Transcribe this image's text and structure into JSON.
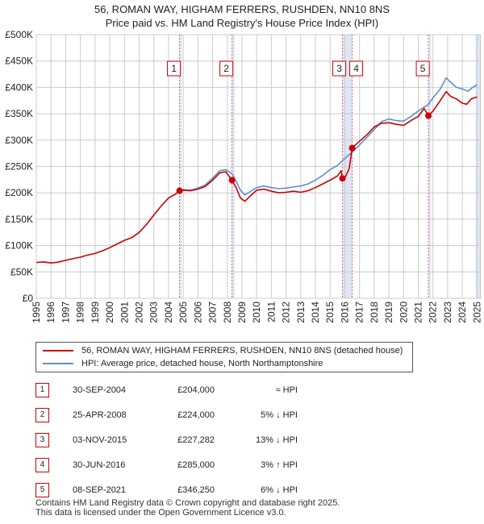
{
  "title_line1": "56, ROMAN WAY, HIGHAM FERRERS, RUSHDEN, NN10 8NS",
  "title_line2": "Price paid vs. HM Land Registry's House Price Index (HPI)",
  "colors": {
    "property": "#cc0000",
    "hpi": "#5b8fd0",
    "marker_line": "#e06060",
    "shade": "#dde6f5",
    "grid": "#cccccc"
  },
  "chart_data": {
    "type": "line",
    "xlim": [
      1995,
      2025.2
    ],
    "ylim": [
      0,
      500000
    ],
    "x_ticks": [
      "1995",
      "1996",
      "1997",
      "1998",
      "1999",
      "2000",
      "2001",
      "2002",
      "2003",
      "2004",
      "2005",
      "2006",
      "2007",
      "2008",
      "2009",
      "2010",
      "2011",
      "2012",
      "2013",
      "2014",
      "2015",
      "2016",
      "2017",
      "2018",
      "2019",
      "2020",
      "2021",
      "2022",
      "2023",
      "2024",
      "2025"
    ],
    "y_ticks": [
      0,
      50000,
      100000,
      150000,
      200000,
      250000,
      300000,
      350000,
      400000,
      450000,
      500000
    ],
    "y_tick_labels": [
      "£0",
      "£50K",
      "£100K",
      "£150K",
      "£200K",
      "£250K",
      "£300K",
      "£350K",
      "£400K",
      "£450K",
      "£500K"
    ],
    "series": [
      {
        "name": "56, ROMAN WAY, HIGHAM FERRERS, RUSHDEN, NN10 8NS (detached house)",
        "color": "#cc0000",
        "points": [
          [
            1995.0,
            68000
          ],
          [
            1995.5,
            69000
          ],
          [
            1996.0,
            67000
          ],
          [
            1996.5,
            68500
          ],
          [
            1997.0,
            72000
          ],
          [
            1997.5,
            75000
          ],
          [
            1998.0,
            78000
          ],
          [
            1998.5,
            82000
          ],
          [
            1999.0,
            85000
          ],
          [
            1999.5,
            90000
          ],
          [
            2000.0,
            96000
          ],
          [
            2000.5,
            103000
          ],
          [
            2001.0,
            110000
          ],
          [
            2001.5,
            115000
          ],
          [
            2002.0,
            125000
          ],
          [
            2002.5,
            140000
          ],
          [
            2003.0,
            158000
          ],
          [
            2003.5,
            175000
          ],
          [
            2004.0,
            190000
          ],
          [
            2004.5,
            198000
          ],
          [
            2004.75,
            204000
          ],
          [
            2005.0,
            205000
          ],
          [
            2005.5,
            204000
          ],
          [
            2006.0,
            207000
          ],
          [
            2006.5,
            212000
          ],
          [
            2007.0,
            224000
          ],
          [
            2007.5,
            238000
          ],
          [
            2007.9,
            240000
          ],
          [
            2008.32,
            224000
          ],
          [
            2008.6,
            210000
          ],
          [
            2008.9,
            190000
          ],
          [
            2009.2,
            184000
          ],
          [
            2009.6,
            195000
          ],
          [
            2010.0,
            205000
          ],
          [
            2010.5,
            207000
          ],
          [
            2011.0,
            203000
          ],
          [
            2011.5,
            200000
          ],
          [
            2012.0,
            201000
          ],
          [
            2012.5,
            203000
          ],
          [
            2013.0,
            201000
          ],
          [
            2013.5,
            204000
          ],
          [
            2014.0,
            210000
          ],
          [
            2014.5,
            217000
          ],
          [
            2015.0,
            224000
          ],
          [
            2015.5,
            232000
          ],
          [
            2015.75,
            242000
          ],
          [
            2015.84,
            227282
          ],
          [
            2016.0,
            228000
          ],
          [
            2016.3,
            246000
          ],
          [
            2016.5,
            285000
          ],
          [
            2017.0,
            298000
          ],
          [
            2017.5,
            310000
          ],
          [
            2018.0,
            325000
          ],
          [
            2018.5,
            332000
          ],
          [
            2019.0,
            333000
          ],
          [
            2019.5,
            330000
          ],
          [
            2020.0,
            328000
          ],
          [
            2020.5,
            337000
          ],
          [
            2021.0,
            345000
          ],
          [
            2021.4,
            360000
          ],
          [
            2021.69,
            346250
          ],
          [
            2022.0,
            355000
          ],
          [
            2022.5,
            375000
          ],
          [
            2022.9,
            392000
          ],
          [
            2023.2,
            383000
          ],
          [
            2023.6,
            378000
          ],
          [
            2024.0,
            370000
          ],
          [
            2024.3,
            368000
          ],
          [
            2024.6,
            378000
          ],
          [
            2025.0,
            382000
          ]
        ]
      },
      {
        "name": "HPI: Average price, detached house, North Northamptonshire",
        "color": "#5b8fd0",
        "points": [
          [
            2004.75,
            205000
          ],
          [
            2005.0,
            206000
          ],
          [
            2005.5,
            205000
          ],
          [
            2006.0,
            209000
          ],
          [
            2006.5,
            215000
          ],
          [
            2007.0,
            228000
          ],
          [
            2007.5,
            242000
          ],
          [
            2007.9,
            244000
          ],
          [
            2008.32,
            236000
          ],
          [
            2008.6,
            222000
          ],
          [
            2008.9,
            205000
          ],
          [
            2009.2,
            196000
          ],
          [
            2009.6,
            203000
          ],
          [
            2010.0,
            210000
          ],
          [
            2010.5,
            213000
          ],
          [
            2011.0,
            210000
          ],
          [
            2011.5,
            208000
          ],
          [
            2012.0,
            209000
          ],
          [
            2012.5,
            211000
          ],
          [
            2013.0,
            213000
          ],
          [
            2013.5,
            217000
          ],
          [
            2014.0,
            224000
          ],
          [
            2014.5,
            233000
          ],
          [
            2015.0,
            244000
          ],
          [
            2015.5,
            252000
          ],
          [
            2015.84,
            261000
          ],
          [
            2016.2,
            270000
          ],
          [
            2016.5,
            277000
          ],
          [
            2017.0,
            291000
          ],
          [
            2017.5,
            305000
          ],
          [
            2018.0,
            320000
          ],
          [
            2018.5,
            335000
          ],
          [
            2019.0,
            340000
          ],
          [
            2019.5,
            337000
          ],
          [
            2020.0,
            336000
          ],
          [
            2020.5,
            345000
          ],
          [
            2021.0,
            355000
          ],
          [
            2021.69,
            368000
          ],
          [
            2022.0,
            380000
          ],
          [
            2022.5,
            397000
          ],
          [
            2022.9,
            418000
          ],
          [
            2023.2,
            410000
          ],
          [
            2023.6,
            400000
          ],
          [
            2024.0,
            397000
          ],
          [
            2024.4,
            393000
          ],
          [
            2024.7,
            400000
          ],
          [
            2025.0,
            405000
          ]
        ]
      }
    ],
    "sale_markers": [
      {
        "label": "1",
        "x": 2004.75,
        "y": 204000
      },
      {
        "label": "2",
        "x": 2008.32,
        "y": 224000
      },
      {
        "label": "3",
        "x": 2015.84,
        "y": 227282
      },
      {
        "label": "4",
        "x": 2016.5,
        "y": 285000
      },
      {
        "label": "5",
        "x": 2021.69,
        "y": 346250
      }
    ],
    "shaded_ranges": [
      [
        2004.75,
        2004.9
      ],
      [
        2008.32,
        2008.5
      ],
      [
        2015.84,
        2016.5
      ],
      [
        2021.69,
        2021.85
      ],
      [
        2024.9,
        2025.2
      ]
    ]
  },
  "legend": {
    "property_label": "56, ROMAN WAY, HIGHAM FERRERS, RUSHDEN, NN10 8NS (detached house)",
    "hpi_label": "HPI: Average price, detached house, North Northamptonshire"
  },
  "sales": [
    {
      "num": "1",
      "date": "30-SEP-2004",
      "price": "£204,000",
      "hpi": "≈ HPI"
    },
    {
      "num": "2",
      "date": "25-APR-2008",
      "price": "£224,000",
      "hpi": "5% ↓ HPI"
    },
    {
      "num": "3",
      "date": "03-NOV-2015",
      "price": "£227,282",
      "hpi": "13% ↓ HPI"
    },
    {
      "num": "4",
      "date": "30-JUN-2016",
      "price": "£285,000",
      "hpi": "3% ↑ HPI"
    },
    {
      "num": "5",
      "date": "08-SEP-2021",
      "price": "£346,250",
      "hpi": "6% ↓ HPI"
    }
  ],
  "footer_line1": "Contains HM Land Registry data © Crown copyright and database right 2025.",
  "footer_line2": "This data is licensed under the Open Government Licence v3.0."
}
